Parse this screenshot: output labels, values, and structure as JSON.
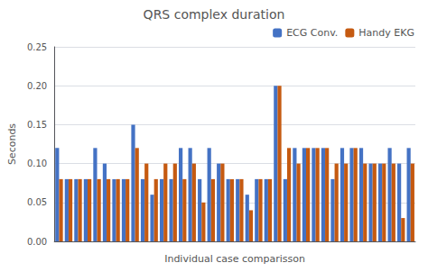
{
  "chart_data": {
    "type": "bar",
    "title": "QRS complex duration",
    "xlabel": "Individual case comparisson",
    "ylabel": "Seconds",
    "categories": [
      null,
      null,
      null,
      null,
      null,
      null,
      null,
      null,
      null,
      null,
      null,
      null,
      null,
      null,
      null,
      null,
      null,
      null,
      null,
      null,
      null,
      null,
      null,
      null,
      null,
      null,
      null,
      null,
      null,
      null,
      null,
      null,
      null,
      null,
      null,
      null,
      null,
      null
    ],
    "series": [
      {
        "name": "ECG Conv.",
        "color": "#4472C4",
        "values": [
          0.12,
          0.08,
          0.08,
          0.08,
          0.12,
          0.1,
          0.08,
          0.08,
          0.15,
          0.08,
          0.06,
          0.08,
          0.08,
          0.12,
          0.12,
          0.08,
          0.12,
          0.1,
          0.08,
          0.08,
          0.06,
          0.08,
          0.08,
          0.2,
          0.08,
          0.12,
          0.12,
          0.12,
          0.12,
          0.08,
          0.12,
          0.12,
          0.12,
          0.1,
          0.1,
          0.12,
          0.1,
          0.12
        ]
      },
      {
        "name": "Handy EKG",
        "color": "#C55A11",
        "values": [
          0.08,
          0.08,
          0.08,
          0.08,
          0.08,
          0.08,
          0.08,
          0.08,
          0.12,
          0.1,
          0.08,
          0.1,
          0.1,
          0.08,
          0.1,
          0.05,
          0.08,
          0.1,
          0.08,
          0.08,
          0.04,
          0.08,
          0.08,
          0.2,
          0.12,
          0.1,
          0.12,
          0.12,
          0.12,
          0.1,
          0.1,
          0.12,
          0.1,
          0.1,
          0.1,
          0.1,
          0.03,
          0.1
        ]
      }
    ],
    "ylim": [
      0,
      0.25
    ],
    "yticks": [
      {
        "value": 0,
        "label": "0.00"
      },
      0.05,
      {
        "value": 0.1,
        "label": "0.10"
      },
      0.15,
      {
        "value": 0.2,
        "label": "0.20"
      },
      0.25
    ],
    "grid": true,
    "legend": "upper right",
    "tick_labels": "y"
  }
}
